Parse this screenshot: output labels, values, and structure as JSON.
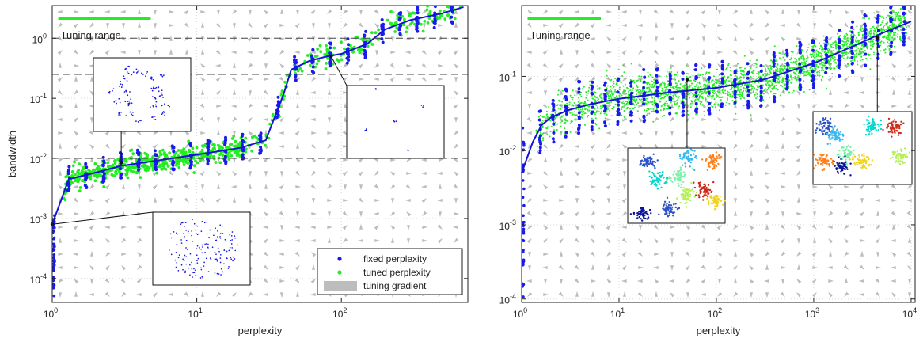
{
  "colors": {
    "fixed": "#1a1aee",
    "tuned": "#22ee22",
    "gradient": "#bdbdbd",
    "fixed_line": "#1414d2",
    "dashed": "#444444",
    "inset_scatter": [
      "#2b50c8",
      "#39b8f0",
      "#ff7f1a",
      "#7cf2a8",
      "#00d8d0",
      "#cc2a1a",
      "#b4f05a",
      "#f2d21a",
      "#0c1496"
    ]
  },
  "chart_data": [
    {
      "type": "scatter",
      "panel": "left",
      "xlabel": "perplexity",
      "ylabel": "bandwidth",
      "xscale": "log",
      "yscale": "log",
      "xlim": [
        1,
        750
      ],
      "ylim": [
        4e-05,
        3.5
      ],
      "xticks": [
        {
          "value": 1,
          "base": "10",
          "exp": "0"
        },
        {
          "value": 10,
          "base": "10",
          "exp": "1"
        },
        {
          "value": 100,
          "base": "10",
          "exp": "2"
        }
      ],
      "yticks": [
        {
          "value": 0.0001,
          "base": "10",
          "exp": "-4"
        },
        {
          "value": 0.001,
          "base": "10",
          "exp": "-3"
        },
        {
          "value": 0.01,
          "base": "10",
          "exp": "-2"
        },
        {
          "value": 0.1,
          "base": "10",
          "exp": "-1"
        },
        {
          "value": 1,
          "base": "10",
          "exp": "0"
        }
      ],
      "grid": true,
      "dashed_lines_y": [
        1.0,
        0.25,
        0.01
      ],
      "tuning_range_label": "Tuning range",
      "tuning_range_x": [
        1.1,
        4.8
      ],
      "fixed_curve": {
        "x": [
          1,
          1.3,
          2,
          3,
          5,
          10,
          20,
          30,
          40,
          45,
          60,
          80,
          100,
          150,
          200,
          300,
          500,
          700
        ],
        "y": [
          0.0008,
          0.0045,
          0.0058,
          0.0075,
          0.009,
          0.0115,
          0.015,
          0.02,
          0.12,
          0.3,
          0.42,
          0.5,
          0.55,
          0.8,
          1.4,
          2.0,
          2.6,
          3.3
        ]
      },
      "legend": {
        "placement": "bottom-right",
        "entries": [
          "fixed perplexity",
          "tuned perplexity",
          "tuning gradient"
        ]
      },
      "insets": [
        {
          "anchor": [
            3,
            0.0085
          ],
          "content": "blue-clusters"
        },
        {
          "anchor": [
            85,
            0.5
          ],
          "content": "blue-sparse"
        },
        {
          "anchor": [
            1,
            0.0008
          ],
          "content": "blue-spread"
        }
      ]
    },
    {
      "type": "scatter",
      "panel": "right",
      "xlabel": "perplexity",
      "ylabel": "",
      "xscale": "log",
      "yscale": "log",
      "xlim": [
        1,
        11000
      ],
      "ylim": [
        9e-05,
        0.9
      ],
      "xticks": [
        {
          "value": 1,
          "base": "10",
          "exp": "0"
        },
        {
          "value": 10,
          "base": "10",
          "exp": "1"
        },
        {
          "value": 100,
          "base": "10",
          "exp": "2"
        },
        {
          "value": 1000,
          "base": "10",
          "exp": "3"
        },
        {
          "value": 10000,
          "base": "10",
          "exp": "4"
        }
      ],
      "yticks": [
        {
          "value": 0.0001,
          "base": "10",
          "exp": "-4"
        },
        {
          "value": 0.001,
          "base": "10",
          "exp": "-3"
        },
        {
          "value": 0.01,
          "base": "10",
          "exp": "-2"
        },
        {
          "value": 0.1,
          "base": "10",
          "exp": "-1"
        }
      ],
      "grid": true,
      "tuning_range_label": "Tuning range",
      "tuning_range_x": [
        1.15,
        6.5
      ],
      "fixed_curve": {
        "x": [
          1,
          1.3,
          1.6,
          2,
          3,
          5,
          10,
          30,
          100,
          300,
          1000,
          3000,
          5000,
          10000
        ],
        "y": [
          0.005,
          0.013,
          0.022,
          0.028,
          0.035,
          0.042,
          0.05,
          0.06,
          0.07,
          0.09,
          0.15,
          0.28,
          0.38,
          0.55
        ]
      },
      "insets": [
        {
          "anchor": [
            50,
            0.09
          ],
          "content": "colored-clusters"
        },
        {
          "anchor": [
            4500,
            0.33
          ],
          "content": "colored-tight"
        }
      ]
    }
  ]
}
